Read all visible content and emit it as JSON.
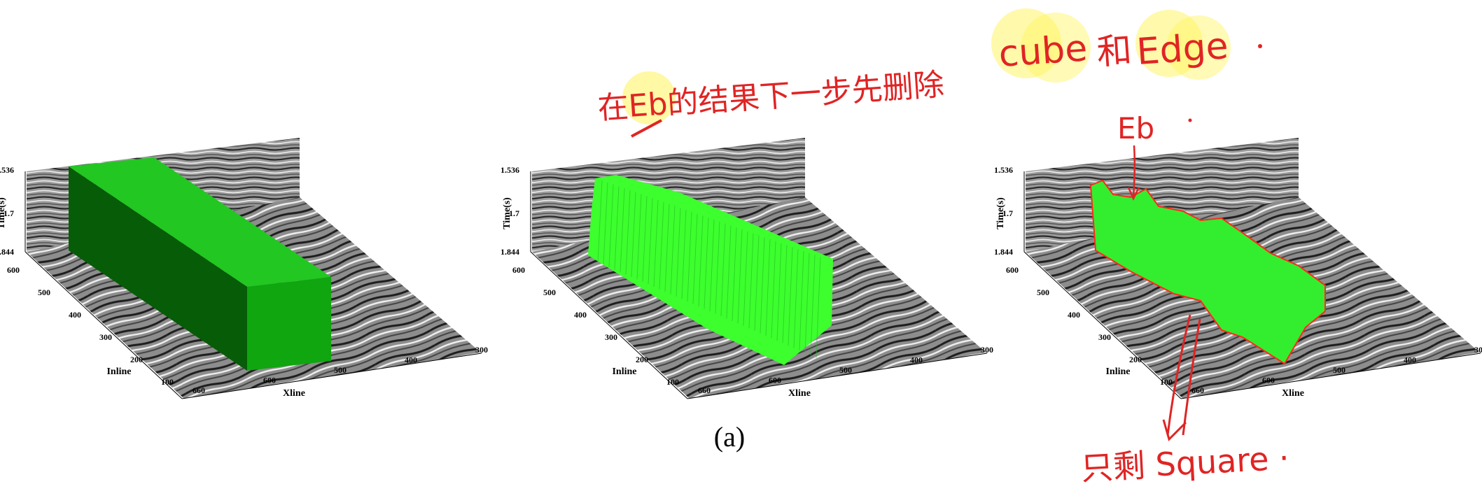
{
  "figure": {
    "caption": "(a)",
    "panels": [
      {
        "id": "cube",
        "time_label": "Time(s)",
        "time_ticks": [
          "1.536",
          "1.7",
          "1.844"
        ],
        "inline_label": "Inline",
        "inline_ticks": [
          "600",
          "500",
          "400",
          "300",
          "200",
          "100"
        ],
        "xline_label": "Xline",
        "xline_ticks": [
          "660",
          "600",
          "500",
          "400",
          "300"
        ],
        "body_color": "#22c722"
      },
      {
        "id": "edge",
        "time_label": "Time(s)",
        "time_ticks": [
          "1.536",
          "1.7",
          "1.844"
        ],
        "inline_label": "Inline",
        "inline_ticks": [
          "600",
          "500",
          "400",
          "300",
          "200",
          "100"
        ],
        "xline_label": "Xline",
        "xline_ticks": [
          "660",
          "600",
          "500",
          "400",
          "300"
        ],
        "body_color": "#3dff2e"
      },
      {
        "id": "square",
        "time_label": "Time(s)",
        "time_ticks": [
          "1.536",
          "1.7",
          "1.844"
        ],
        "inline_label": "Inline",
        "inline_ticks": [
          "600",
          "500",
          "400",
          "300",
          "200",
          "100"
        ],
        "xline_label": "Xline",
        "xline_ticks": [
          "660",
          "600",
          "500",
          "400",
          "300"
        ],
        "body_color": "#33ee2e"
      }
    ]
  },
  "annotations": {
    "color": "#e02424",
    "top_note_prefix": "在Eb的结果下一步先删除",
    "top_note_cube": "cube",
    "top_note_and": "和",
    "top_note_edge": "Edge",
    "eb_label": "Eb",
    "bottom_note": "只剩 Square ·"
  }
}
